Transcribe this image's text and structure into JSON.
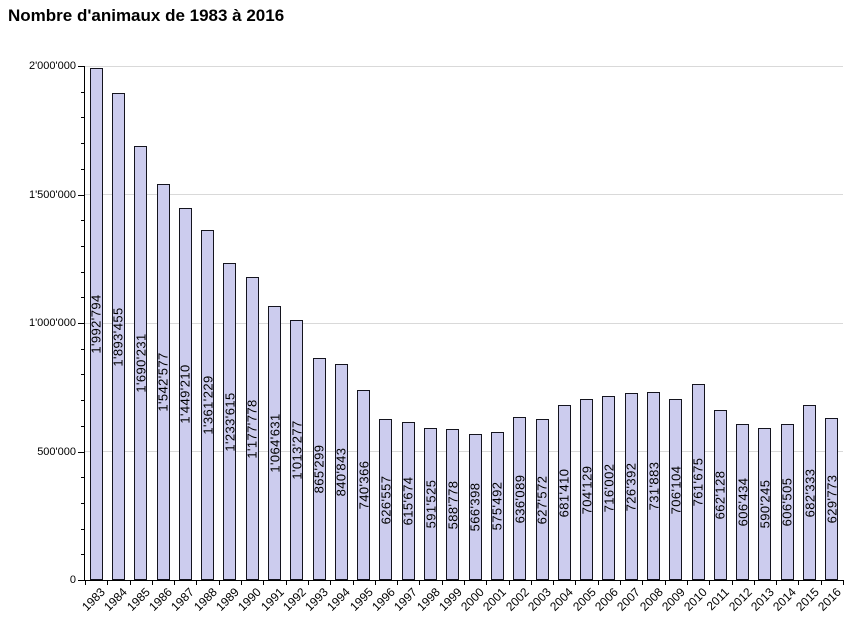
{
  "title": "Nombre d'animaux de 1983 à 2016",
  "chart_data": {
    "type": "bar",
    "title": "Nombre d'animaux de 1983 à 2016",
    "xlabel": "",
    "ylabel": "",
    "legend": "none",
    "grid": "horizontal-major",
    "ylim": [
      0,
      2000000
    ],
    "y_axis": {
      "tick_values": [
        0,
        500000,
        1000000,
        1500000,
        2000000
      ],
      "tick_labels": [
        "0",
        "500'000",
        "1'000'000",
        "1'500'000",
        "2'000'000"
      ],
      "minor_tick_interval": 100000
    },
    "categories": [
      "1983",
      "1984",
      "1985",
      "1986",
      "1987",
      "1988",
      "1989",
      "1990",
      "1991",
      "1992",
      "1993",
      "1994",
      "1995",
      "1996",
      "1997",
      "1998",
      "1999",
      "2000",
      "2001",
      "2002",
      "2003",
      "2004",
      "2005",
      "2006",
      "2007",
      "2008",
      "2009",
      "2010",
      "2011",
      "2012",
      "2013",
      "2014",
      "2015",
      "2016"
    ],
    "values": [
      1992794,
      1893455,
      1690231,
      1542577,
      1449210,
      1361229,
      1233615,
      1177778,
      1064631,
      1013277,
      865299,
      840843,
      740366,
      626557,
      615674,
      591525,
      588778,
      566398,
      575492,
      636089,
      627572,
      681410,
      704129,
      716002,
      726392,
      731883,
      706104,
      761675,
      662128,
      606434,
      590245,
      606505,
      682333,
      629773
    ],
    "value_labels": [
      "1'992'794",
      "1'893'455",
      "1'690'231",
      "1'542'577",
      "1'449'210",
      "1'361'229",
      "1'233'615",
      "1'177'778",
      "1'064'631",
      "1'013'277",
      "865'299",
      "840'843",
      "740'366",
      "626'557",
      "615'674",
      "591'525",
      "588'778",
      "566'398",
      "575'492",
      "636'089",
      "627'572",
      "681'410",
      "704'129",
      "716'002",
      "726'392",
      "731'883",
      "706'104",
      "761'675",
      "662'128",
      "606'434",
      "590'245",
      "606'505",
      "682'333",
      "629'773"
    ],
    "colors": {
      "bar_fill": "#ccccee",
      "bar_border": "#14141e",
      "gridline": "#d9d9d9",
      "axis": "#000000",
      "text": "#000000",
      "background": "#ffffff"
    }
  }
}
